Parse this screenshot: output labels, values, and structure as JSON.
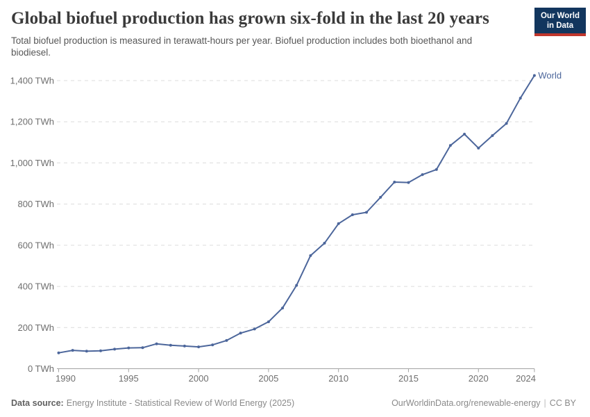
{
  "header": {
    "title": "Global biofuel production has grown six-fold in the last 20 years",
    "subtitle": "Total biofuel production is measured in terawatt-hours per year. Biofuel production includes both bioethanol and biodiesel.",
    "logo": {
      "line1": "Our World",
      "line2": "in Data"
    }
  },
  "chart_data": {
    "type": "line",
    "title": "Global biofuel production has grown six-fold in the last 20 years",
    "xlabel": "",
    "ylabel": "TWh",
    "xlim": [
      1990,
      2024
    ],
    "ylim": [
      0,
      1400
    ],
    "grid": true,
    "legend_position": "line-end",
    "x": [
      1990,
      1991,
      1992,
      1993,
      1994,
      1995,
      1996,
      1997,
      1998,
      1999,
      2000,
      2001,
      2002,
      2003,
      2004,
      2005,
      2006,
      2007,
      2008,
      2009,
      2010,
      2011,
      2012,
      2013,
      2014,
      2015,
      2016,
      2017,
      2018,
      2019,
      2020,
      2021,
      2022,
      2023,
      2024
    ],
    "series": [
      {
        "name": "World",
        "color": "#4c669b",
        "unit": "TWh",
        "values": [
          77,
          89,
          85,
          87,
          95,
          101,
          102,
          121,
          114,
          110,
          106,
          116,
          137,
          173,
          193,
          228,
          295,
          405,
          550,
          610,
          705,
          748,
          760,
          833,
          907,
          905,
          943,
          968,
          1085,
          1140,
          1072,
          1133,
          1192,
          1315,
          1425
        ]
      }
    ],
    "yticks": [
      {
        "value": 0,
        "label": "0 TWh"
      },
      {
        "value": 200,
        "label": "200 TWh"
      },
      {
        "value": 400,
        "label": "400 TWh"
      },
      {
        "value": 600,
        "label": "600 TWh"
      },
      {
        "value": 800,
        "label": "800 TWh"
      },
      {
        "value": 1000,
        "label": "1,000 TWh"
      },
      {
        "value": 1200,
        "label": "1,200 TWh"
      },
      {
        "value": 1400,
        "label": "1,400 TWh"
      }
    ],
    "xticks": [
      {
        "value": 1990,
        "label": "1990"
      },
      {
        "value": 1995,
        "label": "1995"
      },
      {
        "value": 2000,
        "label": "2000"
      },
      {
        "value": 2005,
        "label": "2005"
      },
      {
        "value": 2010,
        "label": "2010"
      },
      {
        "value": 2015,
        "label": "2015"
      },
      {
        "value": 2020,
        "label": "2020"
      },
      {
        "value": 2024,
        "label": "2024"
      }
    ]
  },
  "footer": {
    "source_label": "Data source:",
    "source_text": "Energy Institute - Statistical Review of World Energy (2025)",
    "link": "OurWorldinData.org/renewable-energy",
    "separator": "|",
    "license": "CC BY"
  },
  "colors": {
    "line": "#4c669b",
    "title_text": "#3a3a3a",
    "subtitle_text": "#575757",
    "tick_label": "#6e6e6e",
    "gridline": "#dcdcdc",
    "axis": "#a3a3a3",
    "footer_text": "#8a8a8a",
    "logo_bg": "#12365e",
    "logo_accent": "#c0362c"
  }
}
